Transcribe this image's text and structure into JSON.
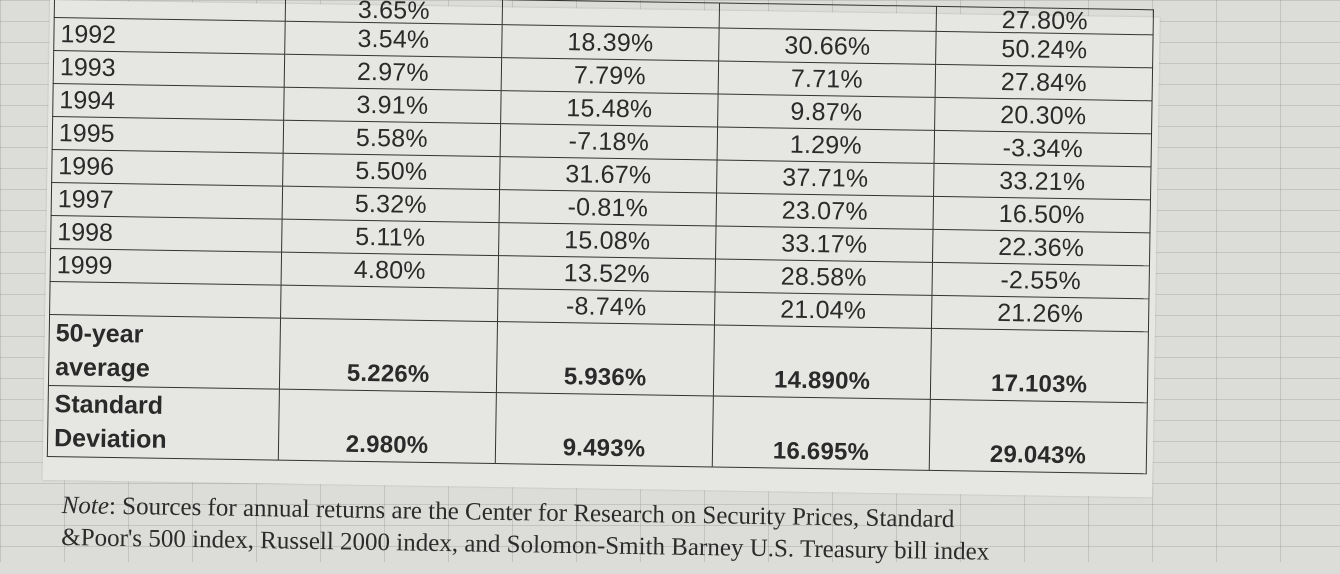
{
  "table": {
    "top_partial": [
      "3.65%",
      "",
      "",
      "27.80%"
    ],
    "rows": [
      {
        "year": "1992",
        "c1": "3.54%",
        "c2": "18.39%",
        "c3": "30.66%",
        "c4": "50.24%"
      },
      {
        "year": "1993",
        "c1": "2.97%",
        "c2": "7.79%",
        "c3": "7.71%",
        "c4": "27.84%"
      },
      {
        "year": "1994",
        "c1": "3.91%",
        "c2": "15.48%",
        "c3": "9.87%",
        "c4": "20.30%"
      },
      {
        "year": "1995",
        "c1": "5.58%",
        "c2": "-7.18%",
        "c3": "1.29%",
        "c4": "-3.34%"
      },
      {
        "year": "1996",
        "c1": "5.50%",
        "c2": "31.67%",
        "c3": "37.71%",
        "c4": "33.21%"
      },
      {
        "year": "1997",
        "c1": "5.32%",
        "c2": "-0.81%",
        "c3": "23.07%",
        "c4": "16.50%"
      },
      {
        "year": "1998",
        "c1": "5.11%",
        "c2": "15.08%",
        "c3": "33.17%",
        "c4": "22.36%"
      },
      {
        "year": "1999",
        "c1": "4.80%",
        "c2": "13.52%",
        "c3": "28.58%",
        "c4": "-2.55%"
      },
      {
        "year": "",
        "c1": "",
        "c2": "-8.74%",
        "c3": "21.04%",
        "c4": "21.26%"
      }
    ],
    "average": {
      "label_1": "50-year",
      "label_2": "average",
      "c1": "5.226%",
      "c2": "5.936%",
      "c3": "14.890%",
      "c4": "17.103%"
    },
    "stdev": {
      "label_1": "Standard",
      "label_2": "Deviation",
      "c1": "2.980%",
      "c2": "9.493%",
      "c3": "16.695%",
      "c4": "29.043%"
    }
  },
  "note": {
    "label": "Note",
    "line_1": ": Sources for annual returns are the Center for Research on Security Prices, Standard",
    "line_2": "&Poor's 500 index, Russell 2000 index, and Solomon-Smith Barney U.S. Treasury bill index"
  }
}
